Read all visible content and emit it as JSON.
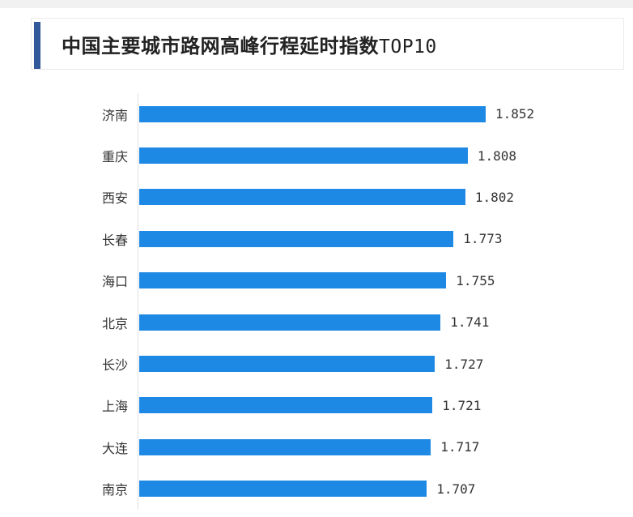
{
  "page": {
    "title_cn": "中国主要城市路网高峰行程延时指数",
    "title_suffix": "TOP10"
  },
  "colors": {
    "bar": "#1E88E5",
    "accent": "#31589B",
    "axis_line": "#E0E0E0",
    "header_border": "#EBEBEB",
    "top_strip": "#F1F1F1",
    "title_text": "#222222",
    "label_text": "#333333"
  },
  "chart_data": {
    "type": "bar",
    "orientation": "horizontal",
    "title": "中国主要城市路网高峰行程延时指数TOP10",
    "categories": [
      "济南",
      "重庆",
      "西安",
      "长春",
      "海口",
      "北京",
      "长沙",
      "上海",
      "大连",
      "南京"
    ],
    "values": [
      1.852,
      1.808,
      1.802,
      1.773,
      1.755,
      1.741,
      1.727,
      1.721,
      1.717,
      1.707
    ],
    "value_labels": [
      "1.852",
      "1.808",
      "1.802",
      "1.773",
      "1.755",
      "1.741",
      "1.727",
      "1.721",
      "1.717",
      "1.707"
    ],
    "xlabel": "",
    "ylabel": "",
    "xmin": 1.0,
    "grid": false,
    "legend": false,
    "bar_color": "#1E88E5",
    "value_label_position": "right-of-bar"
  }
}
